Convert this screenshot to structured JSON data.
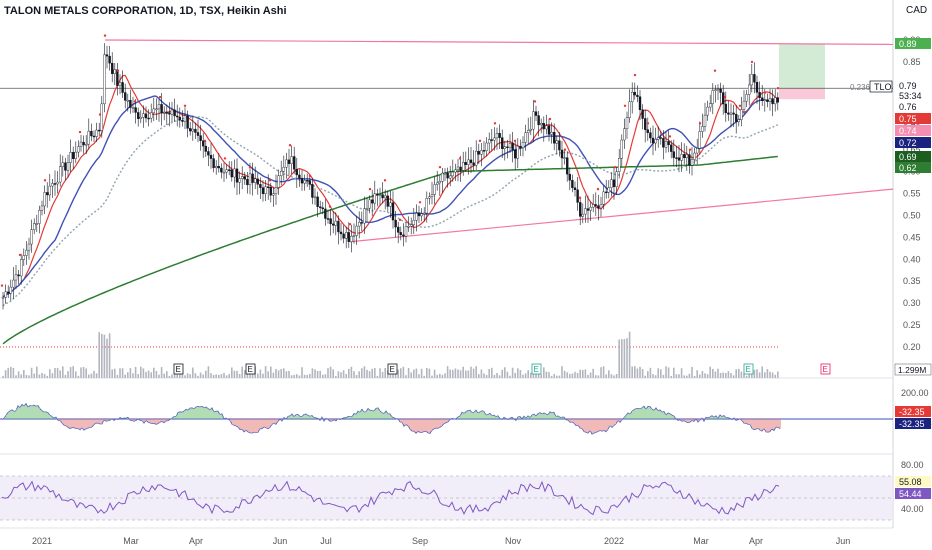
{
  "header": {
    "symbol_line": "TALON METALS CORPORATION, 1D, TSX, Heikin Ashi",
    "currency": "CAD"
  },
  "price_axis": {
    "ticks": [
      "0.90",
      "0.85",
      "0.80",
      "0.75",
      "0.70",
      "0.65",
      "0.60",
      "0.55",
      "0.50",
      "0.45",
      "0.40",
      "0.35",
      "0.30",
      "0.25",
      "0.20"
    ]
  },
  "price_labels": [
    {
      "text": "0.89",
      "value": 0.89,
      "color": "#4caf50"
    },
    {
      "text": "0.79",
      "value": 0.79,
      "color": "#ffffff"
    },
    {
      "text": "53:34",
      "value": 0.777,
      "color": "#ffffff"
    },
    {
      "text": "0.76",
      "value": 0.76,
      "color": "#131722"
    },
    {
      "text": "0.75",
      "value": 0.75,
      "color": "#e53935"
    },
    {
      "text": "0.74",
      "value": 0.74,
      "color": "#f48fb1"
    },
    {
      "text": "0.72",
      "value": 0.72,
      "color": "#1a237e"
    },
    {
      "text": "0.69",
      "value": 0.69,
      "color": "#1b5e20"
    },
    {
      "text": "0.62",
      "value": 0.62,
      "color": "#2e7d32"
    }
  ],
  "tlo_tag": {
    "label": "TLO",
    "ratio": "0.236"
  },
  "volume_label": "1.299M",
  "earnings_markers": [
    "E",
    "E",
    "E",
    "E",
    "E",
    "E"
  ],
  "macd": {
    "axis_ticks": [
      "200.00",
      "-200.00"
    ],
    "labels": [
      "-32.35",
      "-32.35"
    ]
  },
  "rsi": {
    "axis_ticks": [
      "80.00",
      "40.00"
    ],
    "labels": [
      "55.08",
      "54.44"
    ]
  },
  "time_axis": [
    "2021",
    "Mar",
    "Apr",
    "Jun",
    "Jul",
    "Sep",
    "Nov",
    "2022",
    "Mar",
    "Apr",
    "Jun"
  ],
  "colors": {
    "up": "#26a69a",
    "wick": "#131722",
    "ma_fast": "#e53935",
    "ma_mid": "#3f51b5",
    "ma_slow": "#2e7d32",
    "ma_dotted": "#90a4ae",
    "trend": "#e91e63",
    "rsi": "#7e57c2"
  },
  "chart_data": {
    "type": "candlestick",
    "title": "TALON METALS CORPORATION, 1D, TSX, Heikin Ashi",
    "ylim": [
      0.17,
      0.92
    ],
    "x": [
      "2020-12",
      "2021-01",
      "2021-02",
      "2021-02",
      "2021-03",
      "2021-04",
      "2021-05",
      "2021-06",
      "2021-07",
      "2021-07",
      "2021-08",
      "2021-09",
      "2021-10",
      "2021-11",
      "2021-12",
      "2022-01",
      "2022-01",
      "2022-02",
      "2022-03",
      "2022-03",
      "2022-04",
      "2022-04"
    ],
    "close": [
      0.31,
      0.4,
      0.55,
      0.86,
      0.73,
      0.7,
      0.62,
      0.58,
      0.49,
      0.45,
      0.53,
      0.47,
      0.63,
      0.64,
      0.54,
      0.56,
      0.78,
      0.65,
      0.66,
      0.79,
      0.74,
      0.76
    ],
    "annotations": {
      "resistance_line": [
        0.9,
        0.89
      ],
      "support_line": [
        0.44,
        0.56
      ],
      "ma_last": [
        0.75,
        0.72,
        0.69,
        0.62
      ]
    }
  }
}
